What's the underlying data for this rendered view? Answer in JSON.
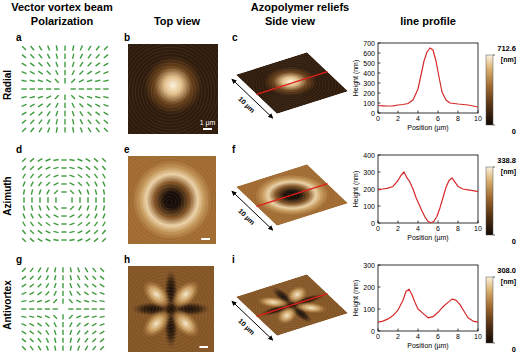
{
  "chart_data": [
    {
      "type": "line",
      "color": "#d42a2a",
      "xlabel": "Position (µm)",
      "ylabel": "Height (nm)",
      "x": [
        0,
        0.5,
        1,
        1.5,
        2,
        2.5,
        3,
        3.5,
        4,
        4.3,
        4.6,
        4.9,
        5.2,
        5.5,
        5.8,
        6.1,
        6.4,
        6.8,
        7.2,
        7.6,
        8,
        8.5,
        9,
        9.5,
        10
      ],
      "values": [
        75,
        72,
        70,
        72,
        80,
        85,
        95,
        130,
        240,
        380,
        520,
        610,
        650,
        630,
        520,
        360,
        210,
        130,
        100,
        95,
        90,
        85,
        80,
        70,
        60
      ],
      "xlim": [
        0,
        10
      ],
      "xticks": [
        0,
        2,
        4,
        6,
        8,
        10
      ],
      "ylim": [
        0,
        700
      ],
      "yticks": [
        0,
        100,
        200,
        300,
        400,
        500,
        600,
        700
      ]
    },
    {
      "type": "line",
      "color": "#d42a2a",
      "xlabel": "Position (µm)",
      "ylabel": "Height (nm)",
      "x": [
        0,
        0.5,
        1,
        1.5,
        2,
        2.3,
        2.6,
        2.9,
        3.2,
        3.5,
        3.8,
        4.1,
        4.4,
        4.7,
        5,
        5.3,
        5.6,
        5.9,
        6.2,
        6.5,
        6.8,
        7.1,
        7.4,
        7.7,
        8,
        8.5,
        9,
        9.5,
        10
      ],
      "values": [
        195,
        200,
        205,
        215,
        250,
        280,
        300,
        265,
        240,
        200,
        150,
        110,
        70,
        35,
        10,
        0,
        10,
        40,
        90,
        150,
        210,
        250,
        265,
        240,
        215,
        200,
        195,
        190,
        185
      ],
      "xlim": [
        0,
        10
      ],
      "xticks": [
        0,
        2,
        4,
        6,
        8,
        10
      ],
      "ylim": [
        0,
        400
      ],
      "yticks": [
        0,
        100,
        200,
        300,
        400
      ]
    },
    {
      "type": "line",
      "color": "#d42a2a",
      "xlabel": "Position (µm)",
      "ylabel": "Height (nm)",
      "x": [
        0,
        0.5,
        1,
        1.5,
        2,
        2.5,
        2.8,
        3.1,
        3.4,
        3.7,
        4,
        4.5,
        5,
        5.5,
        6,
        6.5,
        7,
        7.4,
        7.8,
        8.2,
        8.6,
        9,
        9.5,
        10
      ],
      "values": [
        40,
        45,
        55,
        70,
        95,
        140,
        180,
        190,
        165,
        130,
        100,
        80,
        60,
        65,
        85,
        110,
        130,
        145,
        140,
        120,
        90,
        60,
        45,
        40
      ],
      "xlim": [
        0,
        10
      ],
      "xticks": [
        0,
        2,
        4,
        6,
        8,
        10
      ],
      "ylim": [
        0,
        300
      ],
      "yticks": [
        0,
        100,
        200,
        300
      ]
    }
  ],
  "figure": {
    "headers": [
      "Vector vortex beam",
      "Polarization",
      "Top view",
      "Azopolymer reliefs",
      "Side view",
      "line profile"
    ],
    "scale_bar": "1 µm",
    "side_scale": "10 µm",
    "rows": [
      {
        "label": "Radial",
        "letters": [
          "a",
          "b",
          "c"
        ],
        "colorbar": {
          "range": [
            0,
            712.6
          ],
          "ticks": [
            0,
            712.6
          ],
          "label": "[nm]"
        }
      },
      {
        "label": "Azimuth",
        "letters": [
          "d",
          "e",
          "f"
        ],
        "colorbar": {
          "range": [
            0,
            338.8
          ],
          "ticks": [
            0,
            338.8
          ],
          "label": "[nm]"
        }
      },
      {
        "label": "Antivortex",
        "letters": [
          "g",
          "h",
          "i"
        ],
        "colorbar": {
          "range": [
            0,
            308
          ],
          "ticks": [
            0,
            {
              "value": 308,
              "label": "308.0"
            }
          ],
          "label": "[nm]"
        }
      }
    ]
  }
}
